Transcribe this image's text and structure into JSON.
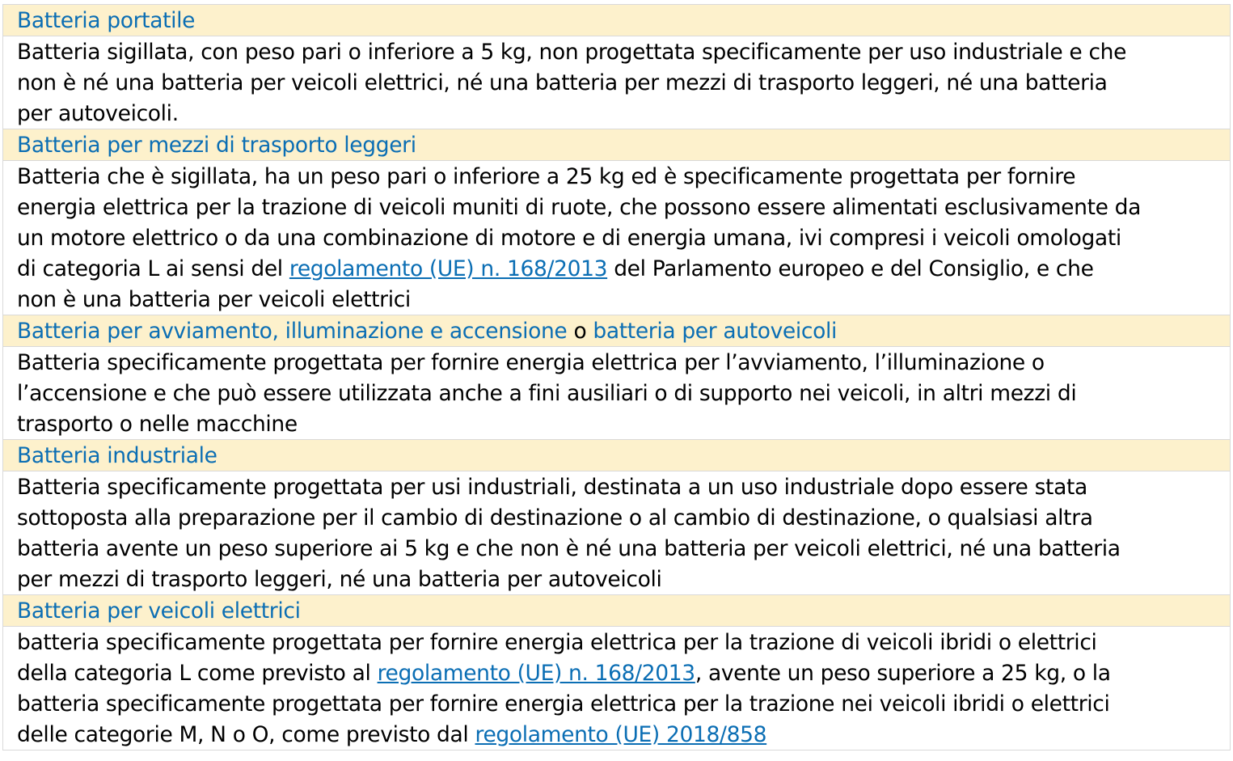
{
  "colors": {
    "header_bg": "#fdf1cc",
    "term": "#0b6eb4",
    "link": "#0b6eb4",
    "text": "#000000"
  },
  "entries": [
    {
      "term": [
        {
          "text": "Batteria portatile"
        }
      ],
      "definition": [
        [
          {
            "text": "Batteria sigillata, con peso pari o inferiore a 5 kg, non progettata specificamente per uso industriale e che"
          }
        ],
        [
          {
            "text": "non è né una batteria per veicoli elettrici, né una batteria per mezzi di trasporto leggeri, né una batteria"
          }
        ],
        [
          {
            "text": "per autoveicoli."
          }
        ]
      ]
    },
    {
      "term": [
        {
          "text": "Batteria per mezzi di trasporto leggeri"
        }
      ],
      "definition": [
        [
          {
            "text": "Batteria che è sigillata, ha un peso pari o inferiore a 25 kg ed è specificamente progettata per fornire"
          }
        ],
        [
          {
            "text": "energia elettrica per la trazione di veicoli muniti di ruote, che possono essere alimentati esclusivamente da"
          }
        ],
        [
          {
            "text": "un motore elettrico o da una combinazione di motore e di energia umana, ivi compresi i veicoli omologati"
          }
        ],
        [
          {
            "text": "di categoria L ai sensi del "
          },
          {
            "text": "regolamento (UE) n. 168/2013",
            "link": true
          },
          {
            "text": " del Parlamento europeo e del Consiglio, e che"
          }
        ],
        [
          {
            "text": "non è una batteria per veicoli elettrici"
          }
        ]
      ]
    },
    {
      "term": [
        {
          "text": "Batteria per avviamento, illuminazione e accensione"
        },
        {
          "text": " o ",
          "plain": true
        },
        {
          "text": "batteria per autoveicoli"
        }
      ],
      "definition": [
        [
          {
            "text": "Batteria specificamente progettata per fornire energia elettrica per l’avviamento, l’illuminazione o"
          }
        ],
        [
          {
            "text": "l’accensione e che può essere utilizzata anche a fini ausiliari o di supporto nei veicoli, in altri mezzi di"
          }
        ],
        [
          {
            "text": "trasporto o nelle macchine"
          }
        ]
      ]
    },
    {
      "term": [
        {
          "text": "Batteria industriale"
        }
      ],
      "definition": [
        [
          {
            "text": "Batteria specificamente progettata per usi industriali, destinata a un uso industriale dopo essere stata"
          }
        ],
        [
          {
            "text": "sottoposta alla preparazione per il cambio di destinazione o al cambio di destinazione, o qualsiasi altra"
          }
        ],
        [
          {
            "text": "batteria avente un peso superiore ai 5 kg e che non è né una batteria per veicoli elettrici, né una batteria"
          }
        ],
        [
          {
            "text": "per mezzi di trasporto leggeri, né una batteria per autoveicoli"
          }
        ]
      ]
    },
    {
      "term": [
        {
          "text": "Batteria per veicoli elettrici"
        }
      ],
      "definition": [
        [
          {
            "text": "batteria specificamente progettata per fornire energia elettrica per la trazione di veicoli ibridi o elettrici"
          }
        ],
        [
          {
            "text": "della categoria L come previsto al "
          },
          {
            "text": "regolamento (UE) n. 168/2013",
            "link": true
          },
          {
            "text": ", avente un peso superiore a 25 kg, o la"
          }
        ],
        [
          {
            "text": "batteria specificamente progettata per fornire energia elettrica per la trazione nei veicoli ibridi o elettrici"
          }
        ],
        [
          {
            "text": "delle categorie M, N o O, come previsto dal "
          },
          {
            "text": "regolamento (UE) 2018/858",
            "link": true
          }
        ]
      ]
    }
  ]
}
